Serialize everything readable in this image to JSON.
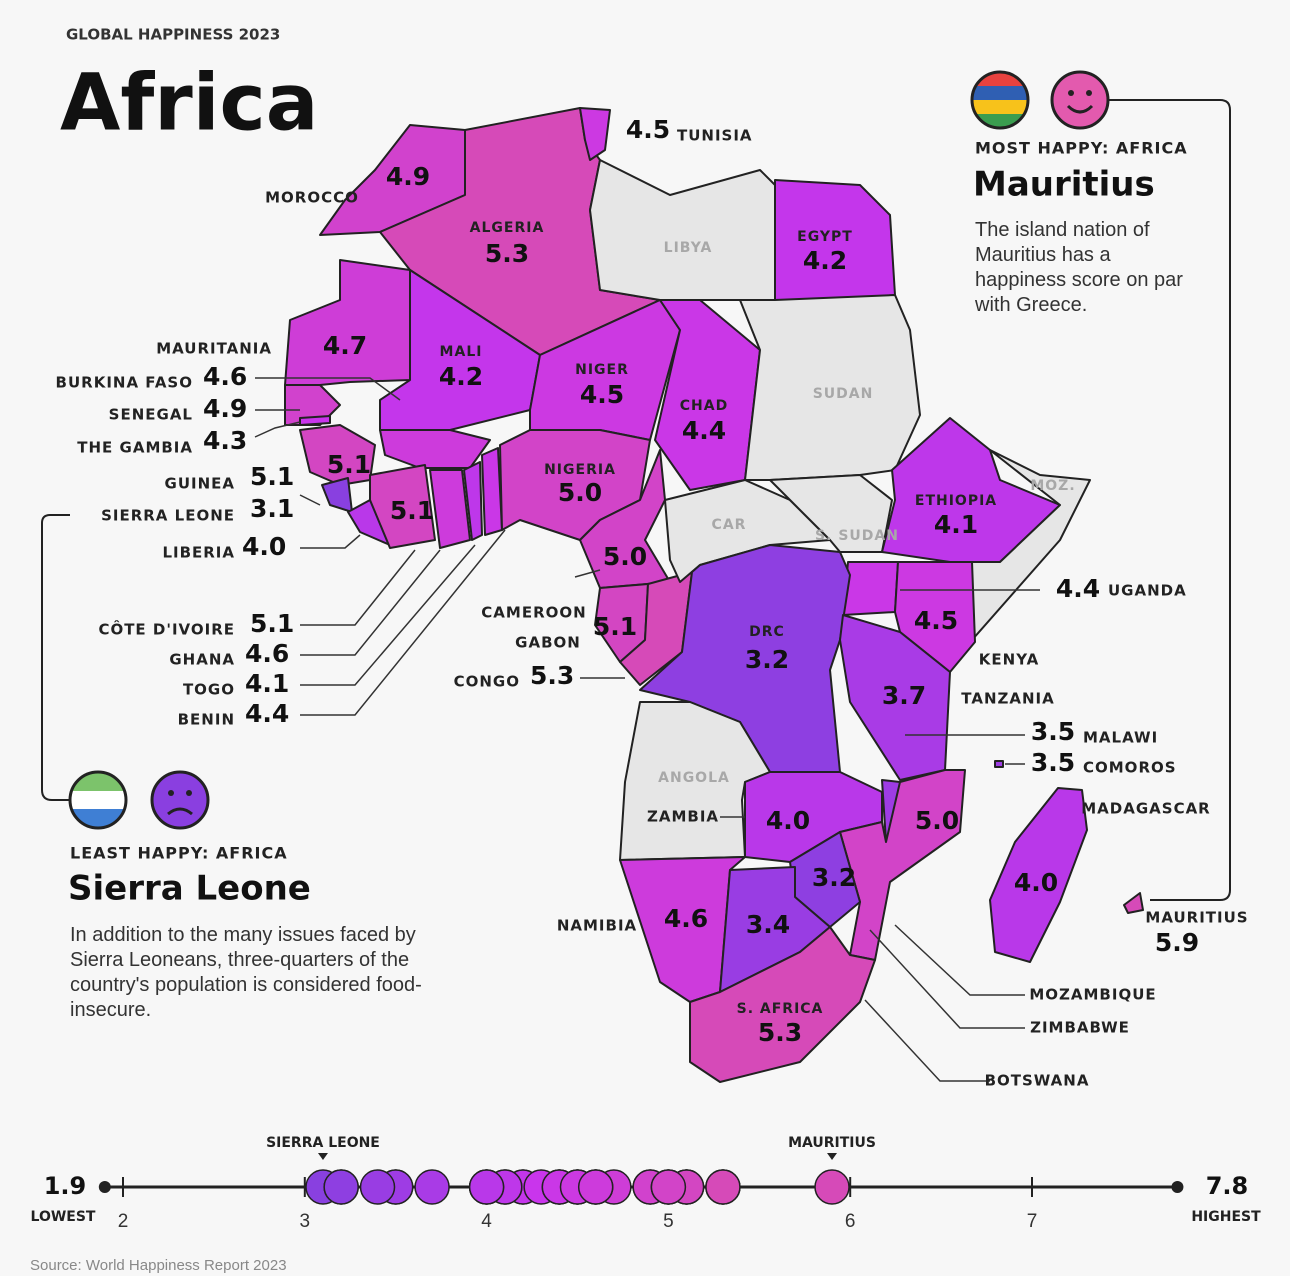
{
  "header": {
    "supertitle": "GLOBAL HAPPINESS 2023",
    "title": "Africa"
  },
  "countries": [
    {
      "name": "MOROCCO",
      "score": 4.9
    },
    {
      "name": "ALGERIA",
      "score": 5.3
    },
    {
      "name": "TUNISIA",
      "score": 4.5
    },
    {
      "name": "LIBYA"
    },
    {
      "name": "EGYPT",
      "score": 4.2
    },
    {
      "name": "MAURITANIA",
      "score": 4.7
    },
    {
      "name": "MALI",
      "score": 4.2
    },
    {
      "name": "NIGER",
      "score": 4.5
    },
    {
      "name": "CHAD",
      "score": 4.4
    },
    {
      "name": "SUDAN"
    },
    {
      "name": "BURKINA FASO",
      "score": 4.6
    },
    {
      "name": "SENEGAL",
      "score": 4.9
    },
    {
      "name": "THE GAMBIA",
      "score": 4.3
    },
    {
      "name": "GUINEA",
      "score": 5.1
    },
    {
      "name": "SIERRA LEONE",
      "score": 3.1
    },
    {
      "name": "LIBERIA",
      "score": 4,
      "score_label": "4.0"
    },
    {
      "name": "CÔTE D'IVOIRE",
      "score": 5.1
    },
    {
      "name": "GHANA",
      "score": 4.6
    },
    {
      "name": "TOGO",
      "score": 4.1
    },
    {
      "name": "BENIN",
      "score": 4.4
    },
    {
      "name": "NIGERIA",
      "score": 5,
      "score_label": "5.0"
    },
    {
      "name": "CAMEROON",
      "score": 5,
      "score_label": "5.0"
    },
    {
      "name": "GABON",
      "score": 5.1
    },
    {
      "name": "CONGO",
      "score": 5.3
    },
    {
      "name": "CAR"
    },
    {
      "name": "S. SUDAN"
    },
    {
      "name": "ETHIOPIA",
      "score": 4.1
    },
    {
      "name": "MOZ."
    },
    {
      "name": "UGANDA",
      "score": 4.4
    },
    {
      "name": "KENYA",
      "score": 4.5
    },
    {
      "name": "DRC",
      "score": 3.2
    },
    {
      "name": "TANZANIA",
      "score": 3.7
    },
    {
      "name": "MALAWI",
      "score": 3.5
    },
    {
      "name": "COMOROS",
      "score": 3.5
    },
    {
      "name": "MADAGASCAR",
      "score": 4,
      "score_label": "4.0"
    },
    {
      "name": "ANGOLA"
    },
    {
      "name": "ZAMBIA",
      "score": 4,
      "score_label": "4.0"
    },
    {
      "name": "MOZAMBIQUE",
      "score": 5,
      "score_label": "5.0"
    },
    {
      "name": "ZIMBABWE",
      "score": 3.2
    },
    {
      "name": "NAMIBIA",
      "score": 4.6
    },
    {
      "name": "BOTSWANA",
      "score": 3.4
    },
    {
      "name": "S. AFRICA",
      "score": 5.3
    },
    {
      "name": "MAURITIUS",
      "score": 5.9
    }
  ],
  "most_happy": {
    "heading": "MOST HAPPY: AFRICA",
    "country": "Mauritius",
    "text": "The island nation of Mauritius has a happiness score on par with Greece."
  },
  "least_happy": {
    "heading": "LEAST HAPPY: AFRICA",
    "country": "Sierra Leone",
    "text": "In addition to the many issues faced by Sierra Leoneans, three-quarters of the country's population is considered food-insecure."
  },
  "scale": {
    "xlim": [
      1.9,
      7.8
    ],
    "xticks": [
      2,
      3,
      4,
      5,
      6,
      7
    ],
    "lowest": "LOWEST",
    "highest": "HIGHEST",
    "markers": [
      "SIERRA LEONE",
      "MAURITIUS"
    ]
  },
  "source": "Source: World Happiness Report 2023"
}
